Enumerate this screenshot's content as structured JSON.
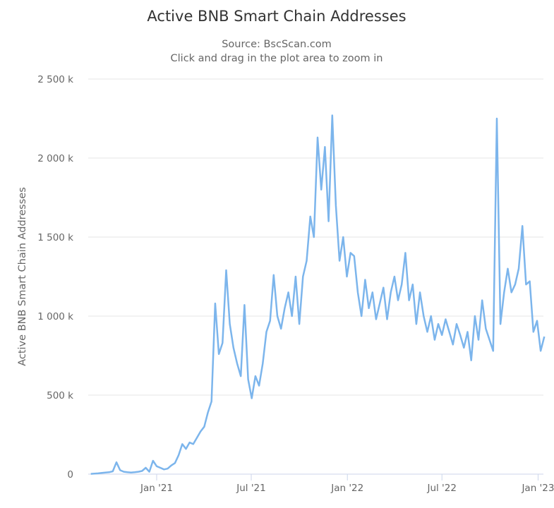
{
  "chart_data": {
    "type": "line",
    "title": "Active BNB Smart Chain Addresses",
    "subtitle": "Source: BscScan.com",
    "subtitle2": "Click and drag in the plot area to zoom in",
    "xlabel": "",
    "ylabel": "Active BNB Smart Chain Addresses",
    "ylim": [
      0,
      2500000
    ],
    "grid": true,
    "y_ticks": [
      {
        "value": 0,
        "label": "0"
      },
      {
        "value": 500000,
        "label": "500 k"
      },
      {
        "value": 1000000,
        "label": "1 000 k"
      },
      {
        "value": 1500000,
        "label": "1 500 k"
      },
      {
        "value": 2000000,
        "label": "2 000 k"
      },
      {
        "value": 2500000,
        "label": "2 500 k"
      }
    ],
    "x_ticks": [
      {
        "date": "2021-01-01",
        "label": "Jan '21"
      },
      {
        "date": "2021-07-01",
        "label": "Jul '21"
      },
      {
        "date": "2022-01-01",
        "label": "Jan '22"
      },
      {
        "date": "2022-07-01",
        "label": "Jul '22"
      },
      {
        "date": "2023-01-01",
        "label": "Jan '23"
      }
    ],
    "xlim": [
      "2020-08-23",
      "2023-01-18"
    ],
    "series": [
      {
        "name": "Active BNB Smart Chain Addresses",
        "color": "#7cb5ec",
        "start_date": "2020-08-28",
        "interval_days": 7,
        "unit": "thousands",
        "values": [
          2,
          3,
          5,
          8,
          10,
          12,
          18,
          75,
          25,
          15,
          12,
          10,
          12,
          15,
          20,
          40,
          15,
          85,
          50,
          40,
          30,
          35,
          55,
          70,
          120,
          190,
          160,
          200,
          190,
          230,
          270,
          300,
          390,
          460,
          1080,
          760,
          830,
          1290,
          950,
          800,
          700,
          620,
          1070,
          600,
          480,
          620,
          560,
          700,
          900,
          970,
          1260,
          1000,
          920,
          1050,
          1150,
          1000,
          1250,
          950,
          1250,
          1350,
          1630,
          1500,
          2130,
          1800,
          2070,
          1600,
          2270,
          1700,
          1350,
          1500,
          1250,
          1400,
          1380,
          1150,
          1000,
          1230,
          1050,
          1150,
          980,
          1080,
          1180,
          980,
          1150,
          1250,
          1100,
          1200,
          1400,
          1100,
          1200,
          950,
          1150,
          1000,
          900,
          1000,
          850,
          950,
          880,
          980,
          900,
          820,
          950,
          880,
          800,
          900,
          720,
          1000,
          850,
          1100,
          920,
          850,
          780,
          2250,
          950,
          1150,
          1300,
          1150,
          1200,
          1300,
          1570,
          1200,
          1220,
          900,
          970,
          780,
          870
        ]
      }
    ]
  }
}
